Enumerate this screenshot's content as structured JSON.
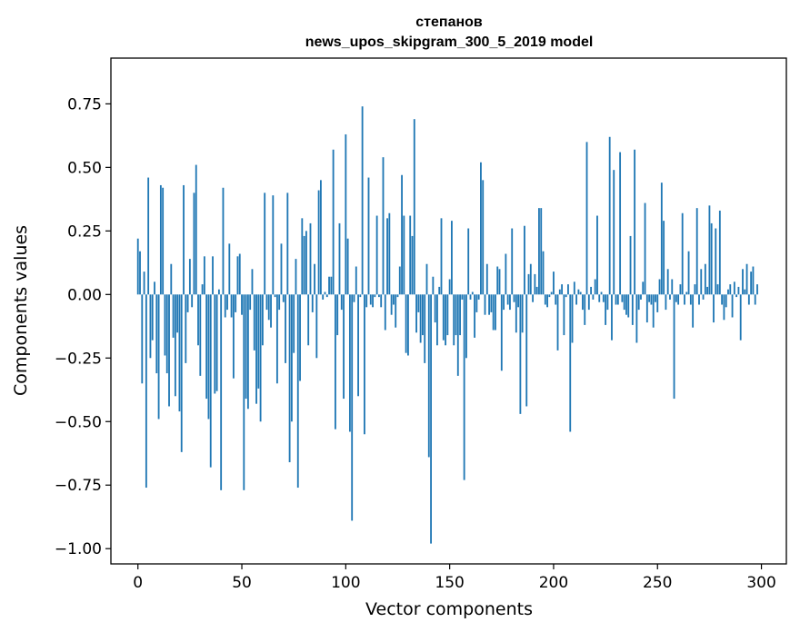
{
  "chart_data": {
    "type": "bar",
    "title": "степанов",
    "subtitle": "news_upos_skipgram_300_5_2019 model",
    "xlabel": "Vector components",
    "ylabel": "Components values",
    "xlim": [
      -13,
      312
    ],
    "ylim": [
      -1.06,
      0.93
    ],
    "xticks": [
      0,
      50,
      100,
      150,
      200,
      250,
      300
    ],
    "xtick_labels": [
      "0",
      "50",
      "100",
      "150",
      "200",
      "250",
      "300"
    ],
    "yticks": [
      0.75,
      0.5,
      0.25,
      0.0,
      -0.25,
      -0.5,
      -0.75,
      -1.0
    ],
    "ytick_labels": [
      "0.75",
      "0.50",
      "0.25",
      "0.00",
      "−0.25",
      "−0.50",
      "−0.75",
      "−1.00"
    ],
    "bar_color": "#1f77b4",
    "grid": false,
    "legend": "none",
    "values": [
      0.22,
      0.17,
      -0.35,
      0.09,
      -0.76,
      0.46,
      -0.25,
      -0.18,
      0.05,
      -0.31,
      -0.49,
      0.43,
      0.42,
      -0.24,
      -0.31,
      -0.44,
      0.12,
      -0.17,
      -0.4,
      -0.15,
      -0.46,
      -0.62,
      0.43,
      -0.27,
      -0.07,
      0.14,
      -0.05,
      0.4,
      0.51,
      -0.2,
      -0.32,
      0.04,
      0.15,
      -0.41,
      -0.49,
      -0.68,
      0.15,
      -0.39,
      -0.38,
      0.02,
      -0.77,
      0.42,
      -0.09,
      -0.06,
      0.2,
      -0.09,
      -0.33,
      -0.07,
      0.15,
      0.16,
      -0.08,
      -0.77,
      -0.41,
      -0.45,
      -0.06,
      0.1,
      -0.22,
      -0.43,
      -0.37,
      -0.5,
      -0.2,
      0.4,
      -0.06,
      -0.1,
      -0.13,
      0.39,
      -0.01,
      -0.35,
      -0.06,
      0.2,
      -0.03,
      -0.27,
      0.4,
      -0.66,
      -0.5,
      -0.23,
      0.14,
      -0.76,
      -0.34,
      0.3,
      0.23,
      0.25,
      -0.2,
      0.28,
      -0.07,
      0.12,
      -0.25,
      0.41,
      0.45,
      -0.02,
      0.01,
      -0.01,
      0.07,
      0.07,
      0.57,
      -0.53,
      -0.16,
      0.28,
      -0.06,
      -0.41,
      0.63,
      0.22,
      -0.54,
      -0.89,
      -0.03,
      0.11,
      -0.4,
      -0.01,
      0.74,
      -0.55,
      -0.05,
      0.46,
      -0.04,
      -0.05,
      -0.01,
      0.31,
      -0.01,
      -0.05,
      0.54,
      -0.14,
      0.3,
      0.32,
      -0.08,
      -0.04,
      -0.13,
      -0.01,
      0.11,
      0.47,
      0.31,
      -0.23,
      -0.24,
      0.31,
      0.23,
      0.69,
      -0.15,
      -0.07,
      -0.19,
      -0.16,
      -0.27,
      0.12,
      -0.64,
      -0.98,
      0.07,
      -0.11,
      -0.2,
      0.03,
      0.3,
      -0.18,
      -0.2,
      -0.16,
      0.06,
      0.29,
      -0.2,
      -0.16,
      -0.32,
      -0.16,
      -0.02,
      -0.73,
      -0.25,
      0.26,
      -0.02,
      0.01,
      -0.17,
      -0.07,
      -0.02,
      0.52,
      0.45,
      -0.08,
      0.12,
      -0.08,
      -0.07,
      -0.14,
      -0.14,
      0.11,
      0.1,
      -0.3,
      -0.06,
      0.16,
      -0.04,
      -0.06,
      0.26,
      -0.03,
      -0.15,
      -0.05,
      -0.47,
      -0.15,
      0.27,
      -0.44,
      0.08,
      0.12,
      -0.03,
      0.08,
      0.03,
      0.34,
      0.34,
      0.17,
      -0.04,
      -0.05,
      -0.01,
      0.01,
      0.09,
      -0.04,
      -0.22,
      0.02,
      0.04,
      -0.16,
      -0.01,
      0.04,
      -0.54,
      -0.19,
      0.05,
      -0.04,
      0.02,
      0.01,
      -0.06,
      -0.12,
      0.6,
      -0.06,
      0.03,
      -0.02,
      0.06,
      0.31,
      -0.03,
      0.01,
      -0.03,
      -0.12,
      -0.06,
      0.62,
      -0.18,
      0.49,
      -0.04,
      -0.04,
      0.56,
      -0.03,
      -0.06,
      -0.08,
      -0.09,
      0.23,
      -0.12,
      0.57,
      -0.19,
      -0.06,
      -0.02,
      0.05,
      0.36,
      -0.11,
      -0.03,
      -0.04,
      -0.13,
      -0.03,
      -0.07,
      0.06,
      0.44,
      0.29,
      -0.06,
      0.1,
      -0.02,
      0.06,
      -0.41,
      -0.03,
      -0.04,
      0.04,
      0.32,
      -0.04,
      0.01,
      0.17,
      -0.04,
      -0.13,
      0.04,
      0.34,
      -0.04,
      0.1,
      -0.02,
      0.12,
      0.03,
      0.35,
      0.28,
      -0.11,
      0.26,
      0.04,
      0.33,
      -0.04,
      -0.1,
      -0.05,
      0.02,
      0.04,
      -0.09,
      0.05,
      -0.01,
      0.03,
      -0.18,
      0.1,
      0.02,
      0.12,
      -0.04,
      0.09,
      0.11,
      -0.04,
      0.04
    ]
  }
}
